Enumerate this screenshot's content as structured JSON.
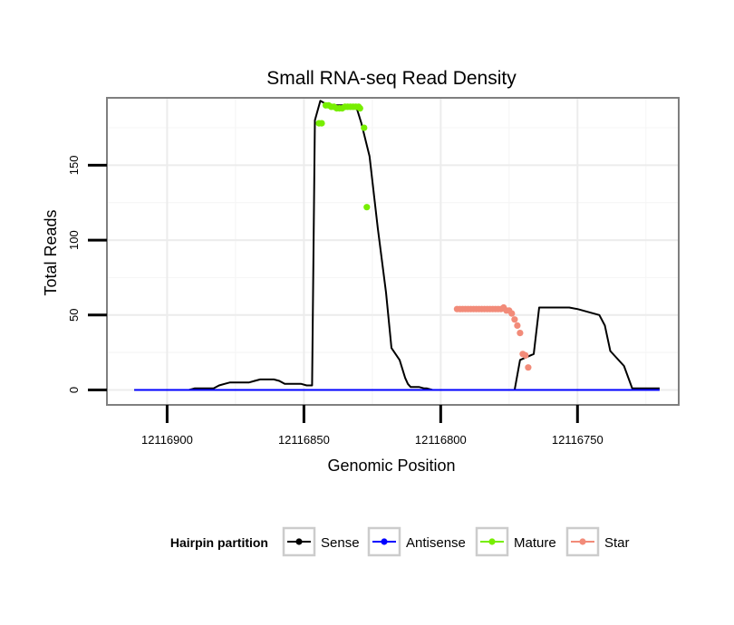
{
  "chart_data": {
    "type": "line",
    "title": "Small RNA-seq Read Density",
    "xlabel": "Genomic Position",
    "ylabel": "Total Reads",
    "xlim": [
      12116922,
      12116713
    ],
    "ylim": [
      -10,
      195
    ],
    "x_reversed": true,
    "xticks": [
      12116900,
      12116850,
      12116800,
      12116750
    ],
    "xtick_labels": [
      "12116900",
      "12116850",
      "12116800",
      "12116750"
    ],
    "yticks": [
      0,
      50,
      100,
      150
    ],
    "ytick_labels": [
      "0",
      "50",
      "100",
      "150"
    ],
    "grid": true,
    "legend": {
      "title": "Hairpin partition",
      "position": "bottom",
      "entries": [
        "Sense",
        "Antisense",
        "Mature",
        "Star"
      ]
    },
    "colors": {
      "Sense": "#000000",
      "Antisense": "#0000ff",
      "Mature": "#77ee00",
      "Star": "#f28b79"
    },
    "series": [
      {
        "name": "Sense",
        "type": "line",
        "x": [
          12116912,
          12116892,
          12116890,
          12116886,
          12116884,
          12116883,
          12116881,
          12116879,
          12116877,
          12116875,
          12116873,
          12116871,
          12116870,
          12116868,
          12116866,
          12116863,
          12116861,
          12116859,
          12116857,
          12116855,
          12116851,
          12116849,
          12116847,
          12116846,
          12116844,
          12116843,
          12116842,
          12116841,
          12116839,
          12116833,
          12116831,
          12116829,
          12116826,
          12116823,
          12116820,
          12116818,
          12116815,
          12116813,
          12116812,
          12116811,
          12116810,
          12116809,
          12116808,
          12116806,
          12116805,
          12116803,
          12116800,
          12116797,
          12116794,
          12116792,
          12116789,
          12116787,
          12116781,
          12116779,
          12116776,
          12116773,
          12116771,
          12116766,
          12116764,
          12116762,
          12116757,
          12116755,
          12116753,
          12116750,
          12116742,
          12116740,
          12116738,
          12116733,
          12116730,
          12116720
        ],
        "y": [
          0,
          0,
          1,
          1,
          1,
          1,
          3,
          4,
          5,
          5,
          5,
          5,
          5,
          6,
          7,
          7,
          7,
          6,
          4,
          4,
          4,
          3,
          3,
          180,
          193,
          192,
          191,
          190,
          190,
          190,
          190,
          178,
          156,
          108,
          65,
          28,
          20,
          8,
          4,
          2,
          2,
          2,
          2,
          1,
          1,
          0,
          0,
          0,
          0,
          0,
          0,
          0,
          0,
          0,
          0,
          0,
          20,
          24,
          55,
          55,
          55,
          55,
          55,
          54,
          50,
          43,
          26,
          16,
          1,
          1
        ]
      },
      {
        "name": "Antisense",
        "type": "line",
        "x": [
          12116912,
          12116892,
          12116840,
          12116802,
          12116792,
          12116755,
          12116750,
          12116720
        ],
        "y": [
          0,
          0,
          0,
          0,
          0,
          0,
          0,
          0
        ]
      },
      {
        "name": "Mature",
        "type": "points",
        "x": [
          12116844.5,
          12116843.5,
          12116842,
          12116841,
          12116840,
          12116839,
          12116838,
          12116837,
          12116836,
          12116835,
          12116834,
          12116833,
          12116832,
          12116831,
          12116830,
          12116829.5,
          12116828,
          12116827
        ],
        "y": [
          178,
          178,
          190,
          190,
          189,
          189,
          188,
          188,
          188,
          189,
          189,
          189,
          189,
          189,
          189,
          188,
          175,
          122
        ]
      },
      {
        "name": "Star",
        "type": "points",
        "x": [
          12116794,
          12116793,
          12116792,
          12116791,
          12116790,
          12116789,
          12116788,
          12116787,
          12116786,
          12116785,
          12116784,
          12116783,
          12116782,
          12116781,
          12116780,
          12116779,
          12116778,
          12116777,
          12116776,
          12116775,
          12116774,
          12116773,
          12116772,
          12116771,
          12116770,
          12116769,
          12116768
        ],
        "y": [
          54,
          54,
          54,
          54,
          54,
          54,
          54,
          54,
          54,
          54,
          54,
          54,
          54,
          54,
          54,
          54,
          54,
          55,
          53,
          53,
          51,
          47,
          43,
          38,
          24,
          23,
          15
        ]
      }
    ]
  }
}
